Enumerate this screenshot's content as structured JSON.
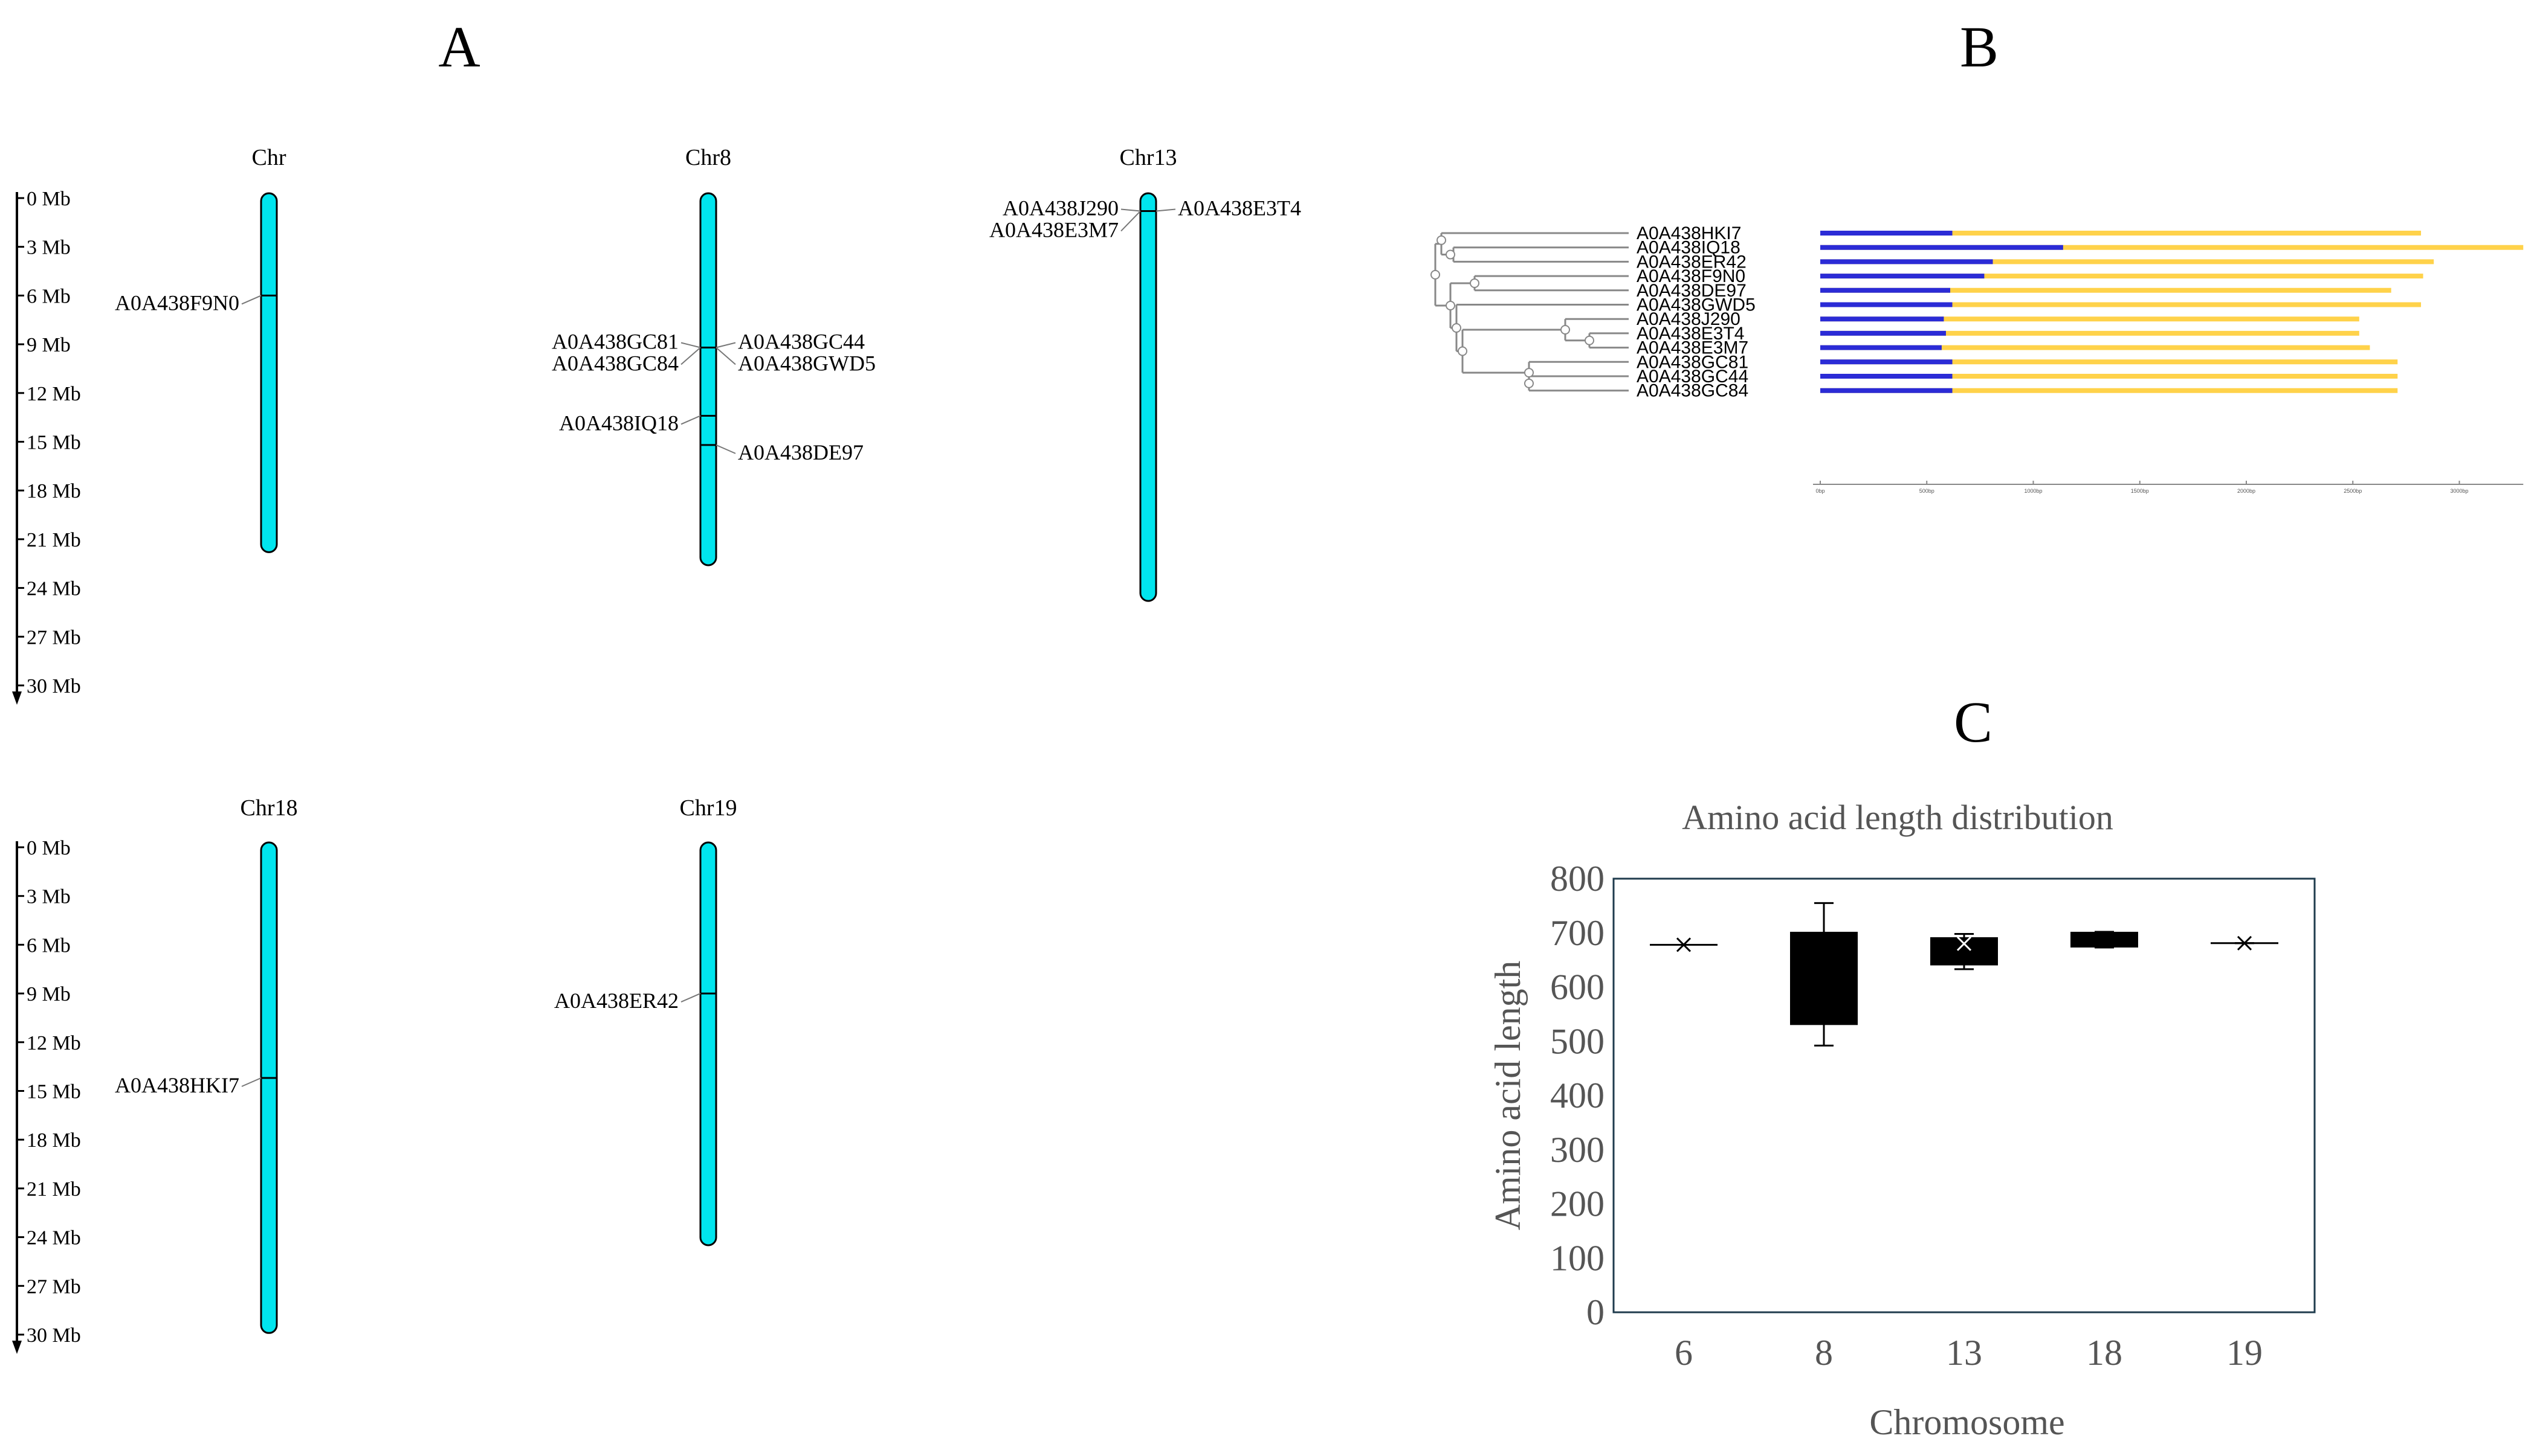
{
  "panel_a": {
    "letter": "A",
    "scale_labels": [
      "0 Mb",
      "3 Mb",
      "6 Mb",
      "9 Mb",
      "12 Mb",
      "15 Mb",
      "18 Mb",
      "21 Mb",
      "24 Mb",
      "27 Mb",
      "30 Mb"
    ],
    "chromosome_color": "#00e5ee",
    "chromosomes": [
      {
        "name": "Chr",
        "length_mb": 21.8,
        "genes": [
          {
            "id": "A0A438F9N0",
            "pos_mb": 6.0,
            "side": "left"
          }
        ]
      },
      {
        "name": "Chr8",
        "length_mb": 22.6,
        "genes": [
          {
            "id": "A0A438GC81",
            "pos_mb": 9.2,
            "side": "left"
          },
          {
            "id": "A0A438GC84",
            "pos_mb": 9.2,
            "side": "left"
          },
          {
            "id": "A0A438GC44",
            "pos_mb": 9.2,
            "side": "right"
          },
          {
            "id": "A0A438GWD5",
            "pos_mb": 9.2,
            "side": "right"
          },
          {
            "id": "A0A438IQ18",
            "pos_mb": 13.4,
            "side": "left"
          },
          {
            "id": "A0A438DE97",
            "pos_mb": 15.2,
            "side": "right"
          }
        ]
      },
      {
        "name": "Chr13",
        "length_mb": 24.8,
        "genes": [
          {
            "id": "A0A438J290",
            "pos_mb": 0.8,
            "side": "left"
          },
          {
            "id": "A0A438E3M7",
            "pos_mb": 0.8,
            "side": "left"
          },
          {
            "id": "A0A438E3T4",
            "pos_mb": 0.8,
            "side": "right"
          }
        ]
      },
      {
        "name": "Chr18",
        "length_mb": 29.9,
        "genes": [
          {
            "id": "A0A438HKI7",
            "pos_mb": 14.2,
            "side": "left"
          }
        ]
      },
      {
        "name": "Chr19",
        "length_mb": 24.5,
        "genes": [
          {
            "id": "A0A438ER42",
            "pos_mb": 9.0,
            "side": "left"
          }
        ]
      }
    ]
  },
  "panel_b": {
    "letter": "B",
    "domain_color": "#2b2bd6",
    "rest_color": "#ffd24a",
    "genes": [
      {
        "id": "A0A438HKI7",
        "total_bp": 2820,
        "domain_bp": 620
      },
      {
        "id": "A0A438IQ18",
        "total_bp": 3300,
        "domain_bp": 1140
      },
      {
        "id": "A0A438ER42",
        "total_bp": 2880,
        "domain_bp": 810
      },
      {
        "id": "A0A438F9N0",
        "total_bp": 2830,
        "domain_bp": 770
      },
      {
        "id": "A0A438DE97",
        "total_bp": 2680,
        "domain_bp": 610
      },
      {
        "id": "A0A438GWD5",
        "total_bp": 2820,
        "domain_bp": 620
      },
      {
        "id": "A0A438J290",
        "total_bp": 2530,
        "domain_bp": 580
      },
      {
        "id": "A0A438E3T4",
        "total_bp": 2530,
        "domain_bp": 590
      },
      {
        "id": "A0A438E3M7",
        "total_bp": 2580,
        "domain_bp": 570
      },
      {
        "id": "A0A438GC81",
        "total_bp": 2710,
        "domain_bp": 620
      },
      {
        "id": "A0A438GC44",
        "total_bp": 2710,
        "domain_bp": 620
      },
      {
        "id": "A0A438GC84",
        "total_bp": 2710,
        "domain_bp": 620
      }
    ],
    "scale_labels": [
      "0bp",
      "500bp",
      "1000bp",
      "1500bp",
      "2000bp",
      "2500bp",
      "3000bp"
    ]
  },
  "panel_c": {
    "letter": "C",
    "chart_data": {
      "type": "box",
      "title": "Amino acid length distribution",
      "xlabel": "Chromosome",
      "ylabel": "Amino acid length",
      "categories": [
        "6",
        "8",
        "13",
        "18",
        "19"
      ],
      "ylim": [
        0,
        800
      ],
      "yticks": [
        "0",
        "100",
        "200",
        "300",
        "400",
        "500",
        "600",
        "700",
        "800"
      ],
      "boxes": [
        {
          "category": "6",
          "min": 678,
          "q1": 678,
          "median": 678,
          "q3": 678,
          "max": 678,
          "mean": 678
        },
        {
          "category": "8",
          "min": 492,
          "q1": 530,
          "median": 600,
          "q3": 702,
          "max": 755
        },
        {
          "category": "13",
          "min": 633,
          "q1": 640,
          "median": 690,
          "q3": 692,
          "max": 698,
          "mean": 680
        },
        {
          "category": "18",
          "min": 673,
          "q1": 673,
          "median": 690,
          "q3": 702,
          "max": 702
        },
        {
          "category": "19",
          "min": 681,
          "q1": 681,
          "median": 681,
          "q3": 681,
          "max": 681,
          "mean": 681
        }
      ]
    }
  }
}
